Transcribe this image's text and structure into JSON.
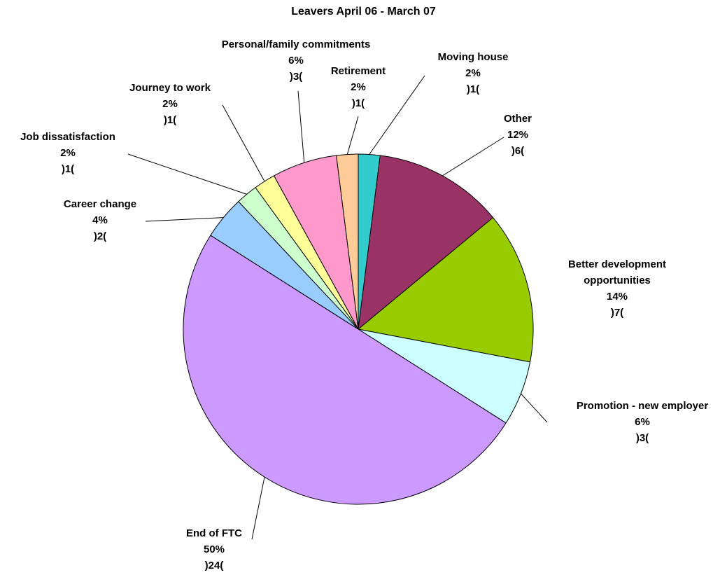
{
  "chart_data": {
    "type": "pie",
    "title": "Leavers April 06 - March 07",
    "categories": [
      "Moving house",
      "Other",
      "Better development opportunities",
      "Promotion - new employer",
      "End of FTC",
      "Career change",
      "Job dissatisfaction",
      "Journey to work",
      "Personal/family commitments",
      "Retirement"
    ],
    "values": [
      2,
      12,
      14,
      6,
      50,
      4,
      2,
      2,
      6,
      2
    ],
    "value_labels": [
      "2%",
      "12%",
      "14%",
      "6%",
      "50%",
      "4%",
      "2%",
      "2%",
      "6%",
      "2%"
    ],
    "counts": [
      1,
      6,
      7,
      3,
      24,
      2,
      1,
      1,
      3,
      1
    ],
    "count_labels": [
      ")1(",
      ")6(",
      ")7(",
      ")3(",
      ")24(",
      ")2(",
      ")1(",
      ")1(",
      ")3(",
      ")1("
    ],
    "colors": [
      "#33cccc",
      "#993366",
      "#99cc00",
      "#ccffff",
      "#cc99ff",
      "#99ccff",
      "#ccffcc",
      "#ffff99",
      "#ff99cc",
      "#ffcc99"
    ]
  }
}
